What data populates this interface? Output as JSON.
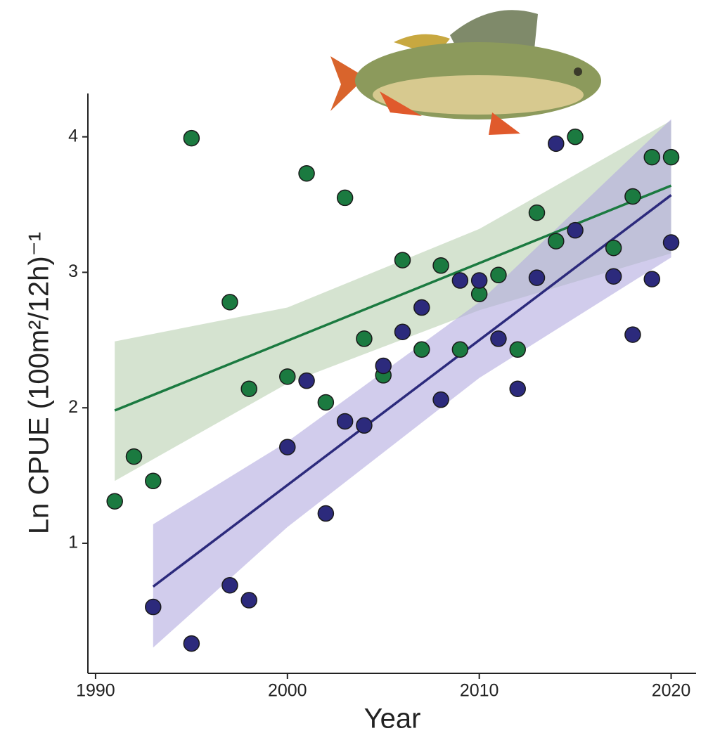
{
  "chart_data": {
    "type": "scatter",
    "xlabel": "Year",
    "ylabel": "Ln CPUE (100m²/12h)⁻¹",
    "xlim": [
      1989.6,
      2021.3
    ],
    "ylim": [
      0.04,
      4.32
    ],
    "xticks": [
      1990,
      2000,
      2010,
      2020
    ],
    "yticks": [
      1,
      2,
      3,
      4
    ],
    "series": [
      {
        "color": "#1b7a40",
        "band_color": "#b9d1b0",
        "x": [
          1991,
          1992,
          1993,
          1995,
          1997,
          1998,
          2000,
          2001,
          2002,
          2003,
          2004,
          2005,
          2006,
          2007,
          2008,
          2009,
          2010,
          2011,
          2012,
          2013,
          2014,
          2015,
          2017,
          2018,
          2019,
          2020
        ],
        "values": [
          1.31,
          1.64,
          1.46,
          3.99,
          2.78,
          2.14,
          2.23,
          3.73,
          2.04,
          3.55,
          2.51,
          2.24,
          3.09,
          2.43,
          3.05,
          2.43,
          2.84,
          2.98,
          2.43,
          3.44,
          3.23,
          4.0,
          3.18,
          3.56,
          3.85,
          3.85
        ],
        "fit": {
          "x": [
            1991,
            2020
          ],
          "values": [
            1.98,
            3.64
          ]
        },
        "band": {
          "x": [
            1991,
            2000,
            2010,
            2020
          ],
          "lower": [
            1.46,
            2.18,
            2.72,
            3.14
          ],
          "upper": [
            2.49,
            2.74,
            3.32,
            4.12
          ]
        }
      },
      {
        "color": "#2c2a7c",
        "band_color": "#b3aadf",
        "x": [
          1993,
          1995,
          1997,
          1998,
          2000,
          2001,
          2002,
          2003,
          2004,
          2005,
          2006,
          2007,
          2008,
          2009,
          2010,
          2011,
          2012,
          2013,
          2014,
          2015,
          2017,
          2018,
          2019,
          2020
        ],
        "values": [
          0.53,
          0.26,
          0.69,
          0.58,
          1.71,
          2.2,
          1.22,
          1.9,
          1.87,
          2.31,
          2.56,
          2.74,
          2.06,
          2.94,
          2.94,
          2.51,
          2.14,
          2.96,
          3.95,
          3.31,
          2.97,
          2.54,
          2.95,
          3.22
        ],
        "fit": {
          "x": [
            1993,
            2020
          ],
          "values": [
            0.68,
            3.57
          ]
        },
        "band": {
          "x": [
            1993,
            2000,
            2010,
            2020
          ],
          "lower": [
            0.23,
            1.12,
            2.22,
            3.11
          ],
          "upper": [
            1.14,
            1.75,
            2.78,
            4.13
          ]
        }
      }
    ]
  }
}
